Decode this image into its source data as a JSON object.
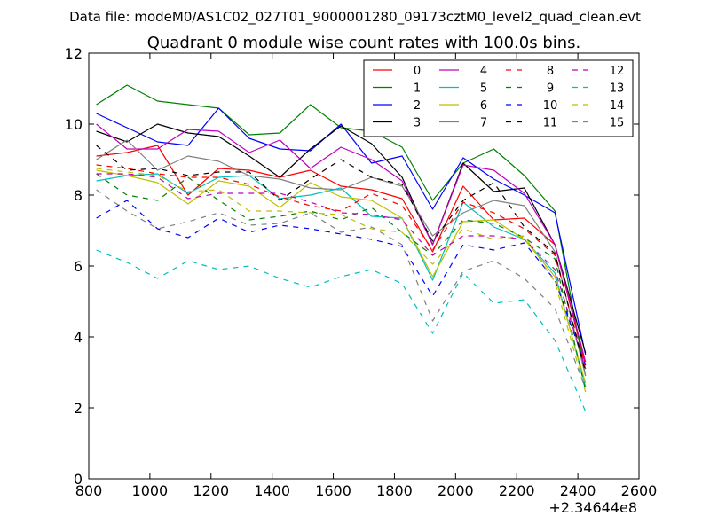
{
  "figure": {
    "suptitle": "Data file: modeM0/AS1C02_027T01_9000001280_09173cztM0_level2_quad_clean.evt"
  },
  "chart_data": {
    "type": "line",
    "title": "Quadrant 0 module wise count rates with 100.0s bins.",
    "xlabel": "",
    "ylabel": "",
    "x_offset_label": "+2.34644e8",
    "xlim": [
      800,
      2600
    ],
    "ylim": [
      0,
      12
    ],
    "xticks": [
      800,
      1000,
      1200,
      1400,
      1600,
      1800,
      2000,
      2200,
      2400,
      2600
    ],
    "yticks": [
      0,
      2,
      4,
      6,
      8,
      10,
      12
    ],
    "xtick_labels": [
      "800",
      "1000",
      "1200",
      "1400",
      "1600",
      "1800",
      "2000",
      "2200",
      "2400",
      "2600"
    ],
    "ytick_labels": [
      "0",
      "2",
      "4",
      "6",
      "8",
      "10",
      "12"
    ],
    "grid": false,
    "legend_position": "top-right",
    "legend_columns": 4,
    "x": [
      825,
      925,
      1025,
      1125,
      1225,
      1325,
      1425,
      1525,
      1625,
      1725,
      1825,
      1925,
      2025,
      2125,
      2225,
      2325,
      2425
    ],
    "series": [
      {
        "name": "0",
        "color": "#ff0000",
        "dash": "solid",
        "values": [
          9.1,
          9.2,
          9.4,
          8.0,
          8.75,
          8.7,
          8.5,
          8.7,
          8.25,
          8.15,
          7.9,
          6.4,
          8.25,
          7.3,
          7.35,
          6.6,
          3.2
        ]
      },
      {
        "name": "1",
        "color": "#008000",
        "dash": "solid",
        "values": [
          10.55,
          11.1,
          10.65,
          10.55,
          10.45,
          9.7,
          9.75,
          10.55,
          9.9,
          9.8,
          9.35,
          7.85,
          8.9,
          9.3,
          8.55,
          7.55,
          2.9
        ]
      },
      {
        "name": "2",
        "color": "#0000ff",
        "dash": "solid",
        "values": [
          10.3,
          9.9,
          9.5,
          9.4,
          10.45,
          9.6,
          9.3,
          9.25,
          10.0,
          8.9,
          9.1,
          7.6,
          9.05,
          8.45,
          8.0,
          7.5,
          3.5
        ]
      },
      {
        "name": "3",
        "color": "#000000",
        "dash": "solid",
        "values": [
          9.8,
          9.5,
          10.0,
          9.75,
          9.65,
          9.1,
          8.5,
          9.3,
          9.95,
          9.45,
          8.5,
          6.6,
          8.9,
          8.1,
          8.2,
          6.6,
          3.55
        ]
      },
      {
        "name": "4",
        "color": "#bf00bf",
        "dash": "solid",
        "values": [
          10.0,
          9.3,
          9.3,
          9.85,
          9.8,
          9.2,
          9.55,
          8.75,
          9.35,
          9.0,
          8.4,
          6.6,
          8.85,
          8.7,
          8.05,
          6.6,
          3.3
        ]
      },
      {
        "name": "5",
        "color": "#00bfbf",
        "dash": "solid",
        "values": [
          8.4,
          8.55,
          8.6,
          8.05,
          8.5,
          8.55,
          7.9,
          8.0,
          8.2,
          7.4,
          7.35,
          5.6,
          7.8,
          7.1,
          6.75,
          5.8,
          2.6
        ]
      },
      {
        "name": "6",
        "color": "#bfbf00",
        "dash": "solid",
        "values": [
          8.7,
          8.55,
          8.35,
          7.75,
          8.4,
          8.25,
          7.65,
          8.35,
          7.95,
          7.85,
          7.35,
          5.7,
          7.25,
          7.3,
          6.75,
          5.7,
          2.7
        ]
      },
      {
        "name": "7",
        "color": "#808080",
        "dash": "solid",
        "values": [
          9.0,
          9.55,
          8.7,
          9.1,
          8.95,
          8.55,
          8.45,
          8.2,
          8.15,
          8.5,
          8.25,
          6.85,
          7.5,
          7.85,
          7.7,
          6.4,
          2.9
        ]
      },
      {
        "name": "8",
        "color": "#ff0000",
        "dash": "dashed",
        "values": [
          8.85,
          8.75,
          8.6,
          8.5,
          8.5,
          8.3,
          7.95,
          7.7,
          7.55,
          8.05,
          7.7,
          6.45,
          7.8,
          7.5,
          7.05,
          6.3,
          3.1
        ]
      },
      {
        "name": "9",
        "color": "#008000",
        "dash": "dashed",
        "values": [
          8.6,
          8.0,
          7.85,
          8.5,
          7.85,
          7.3,
          7.4,
          7.55,
          7.3,
          7.65,
          6.95,
          6.3,
          7.3,
          7.2,
          6.8,
          6.2,
          2.5
        ]
      },
      {
        "name": "10",
        "color": "#0000ff",
        "dash": "dashed",
        "values": [
          7.35,
          7.85,
          7.05,
          6.8,
          7.35,
          6.95,
          7.15,
          7.05,
          6.9,
          6.75,
          6.55,
          5.15,
          6.6,
          6.45,
          6.65,
          5.6,
          3.2
        ]
      },
      {
        "name": "11",
        "color": "#000000",
        "dash": "dashed",
        "values": [
          9.4,
          8.7,
          8.75,
          8.55,
          8.65,
          8.65,
          7.85,
          8.45,
          9.0,
          8.5,
          8.3,
          6.7,
          7.85,
          8.35,
          7.1,
          6.35,
          3.0
        ]
      },
      {
        "name": "12",
        "color": "#bf00bf",
        "dash": "dashed",
        "values": [
          8.6,
          8.6,
          8.5,
          7.9,
          8.05,
          8.05,
          8.05,
          7.8,
          7.5,
          7.45,
          7.3,
          6.3,
          6.85,
          6.85,
          6.75,
          5.9,
          3.1
        ]
      },
      {
        "name": "13",
        "color": "#00bfbf",
        "dash": "dashed",
        "values": [
          6.45,
          6.1,
          5.65,
          6.15,
          5.9,
          6.0,
          5.65,
          5.4,
          5.7,
          5.9,
          5.5,
          4.1,
          5.8,
          4.95,
          5.05,
          3.9,
          1.9
        ]
      },
      {
        "name": "14",
        "color": "#bfbf00",
        "dash": "dashed",
        "values": [
          8.75,
          8.65,
          8.55,
          8.1,
          8.15,
          7.55,
          7.55,
          7.5,
          7.45,
          7.05,
          6.95,
          6.05,
          7.05,
          6.75,
          6.85,
          5.55,
          2.45
        ]
      },
      {
        "name": "15",
        "color": "#808080",
        "dash": "dashed",
        "values": [
          8.15,
          7.55,
          7.05,
          7.25,
          7.5,
          7.15,
          7.2,
          7.5,
          6.95,
          7.1,
          6.6,
          4.45,
          5.85,
          6.15,
          5.65,
          4.8,
          2.55
        ]
      }
    ]
  }
}
